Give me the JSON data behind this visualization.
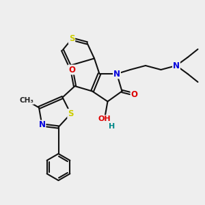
{
  "bg_color": "#eeeeee",
  "bond_color": "#111111",
  "bond_width": 1.5,
  "dbo": 0.06,
  "atom_colors": {
    "S": "#cccc00",
    "N": "#0000dd",
    "O": "#dd0000",
    "H": "#008888"
  },
  "fs": 8.5
}
